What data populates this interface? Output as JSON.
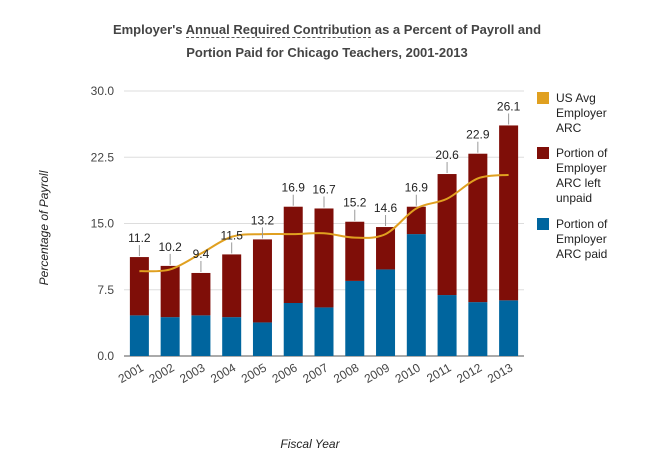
{
  "title": {
    "prefix": "Employer's ",
    "term": "Annual Required Contribution",
    "suffix": " as a Percent of Payroll and",
    "line2": "Portion Paid for Chicago Teachers, 2001-2013"
  },
  "colors": {
    "paid": "#00659e",
    "unpaid": "#7f0e08",
    "us_avg": "#e0a020",
    "grid": "#dddddd"
  },
  "chart_data": {
    "type": "bar",
    "stacked": true,
    "categories": [
      "2001",
      "2002",
      "2003",
      "2004",
      "2005",
      "2006",
      "2007",
      "2008",
      "2009",
      "2010",
      "2011",
      "2012",
      "2013"
    ],
    "series": [
      {
        "name": "Portion of Employer ARC paid",
        "key": "paid",
        "values": [
          4.6,
          4.4,
          4.6,
          4.4,
          3.8,
          6.0,
          5.5,
          8.5,
          9.8,
          13.8,
          6.9,
          6.1,
          6.3
        ]
      },
      {
        "name": "Portion of Employer ARC left unpaid",
        "key": "unpaid",
        "values": [
          6.6,
          5.8,
          4.8,
          7.1,
          9.4,
          10.9,
          11.2,
          6.7,
          4.8,
          3.1,
          13.7,
          16.8,
          19.8
        ]
      },
      {
        "name": "US Avg Employer ARC",
        "key": "us_avg",
        "type": "line",
        "values": [
          9.6,
          9.8,
          11.6,
          13.5,
          13.8,
          13.8,
          13.9,
          13.4,
          13.8,
          16.7,
          17.8,
          20.1,
          20.5
        ]
      }
    ],
    "totals": [
      "11.2",
      "10.2",
      "9.4",
      "11.5",
      "13.2",
      "16.9",
      "16.7",
      "15.2",
      "14.6",
      "16.9",
      "20.6",
      "22.9",
      "26.1"
    ],
    "ylim": [
      0,
      30
    ],
    "yticks": [
      "0.0",
      "7.5",
      "15.0",
      "22.5",
      "30.0"
    ],
    "ytick_values": [
      0,
      7.5,
      15,
      22.5,
      30
    ],
    "xlabel": "Fiscal Year",
    "ylabel": "Percentage of Payroll",
    "legend": [
      {
        "key": "us_avg",
        "lines": [
          "US Avg",
          "Employer",
          "ARC"
        ]
      },
      {
        "key": "unpaid",
        "lines": [
          "Portion of",
          "Employer",
          "ARC left",
          "unpaid"
        ]
      },
      {
        "key": "paid",
        "lines": [
          "Portion of",
          "Employer",
          "ARC paid"
        ]
      }
    ],
    "legend_position": "right"
  }
}
